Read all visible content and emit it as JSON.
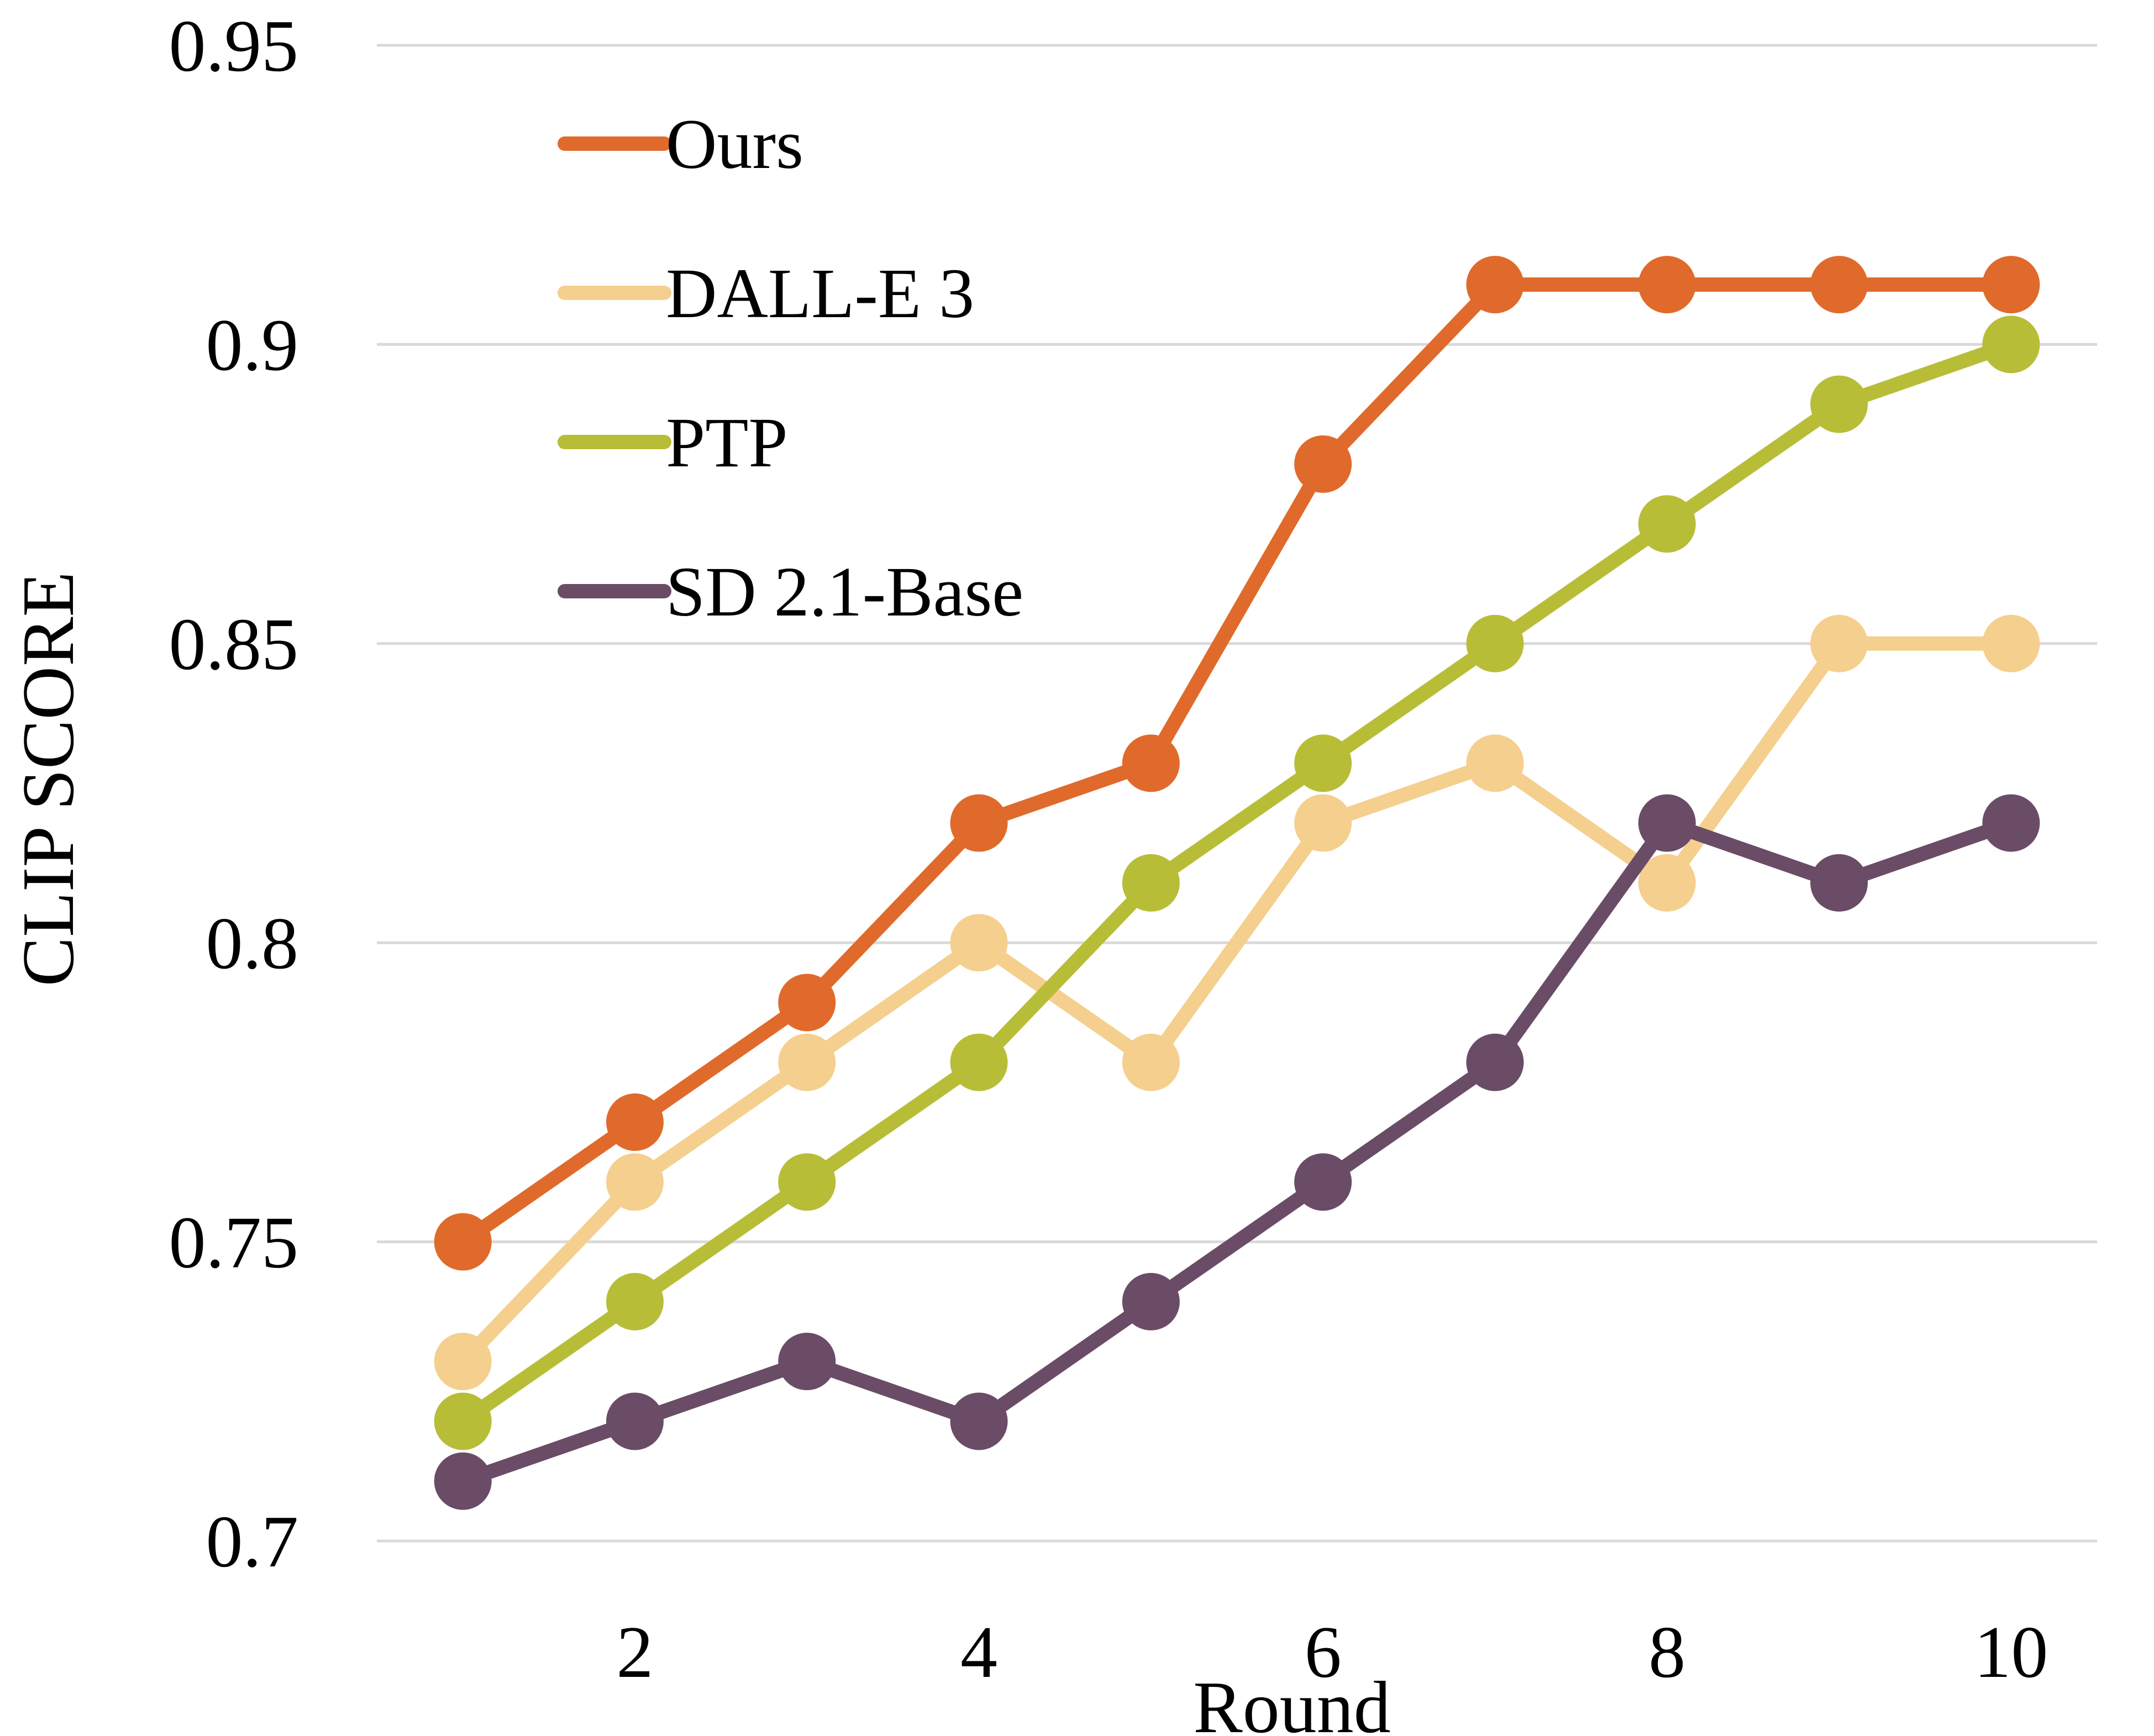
{
  "chart_data": {
    "type": "line",
    "title": "",
    "xlabel": "Round",
    "ylabel": "CLIP SCORE",
    "x": [
      1,
      2,
      3,
      4,
      5,
      6,
      7,
      8,
      9,
      10
    ],
    "x_ticks": [
      2,
      4,
      6,
      8,
      10
    ],
    "x_tick_labels": [
      "2",
      "4",
      "6",
      "8",
      "10"
    ],
    "xlim": [
      0.5,
      10.5
    ],
    "y_ticks": [
      0.7,
      0.75,
      0.8,
      0.85,
      0.9,
      0.95
    ],
    "y_tick_labels": [
      "0.7",
      "0.75",
      "0.8",
      "0.85",
      "0.9",
      "0.95"
    ],
    "ylim": [
      0.7,
      0.95
    ],
    "grid": "horizontal",
    "legend_position": "top-left",
    "series": [
      {
        "name": "Ours",
        "color": "#e06a2b",
        "values": [
          0.75,
          0.77,
          0.79,
          0.82,
          0.83,
          0.88,
          0.91,
          0.91,
          0.91,
          0.91
        ]
      },
      {
        "name": "DALL-E 3",
        "color": "#f5cf8e",
        "values": [
          0.73,
          0.76,
          0.78,
          0.8,
          0.78,
          0.82,
          0.83,
          0.81,
          0.85,
          0.85
        ]
      },
      {
        "name": "PTP",
        "color": "#b8bd38",
        "values": [
          0.72,
          0.74,
          0.76,
          0.78,
          0.81,
          0.83,
          0.85,
          0.87,
          0.89,
          0.9
        ]
      },
      {
        "name": "SD 2.1-Base",
        "color": "#6a4c66",
        "values": [
          0.71,
          0.72,
          0.73,
          0.72,
          0.74,
          0.76,
          0.78,
          0.82,
          0.81,
          0.82
        ]
      }
    ]
  }
}
